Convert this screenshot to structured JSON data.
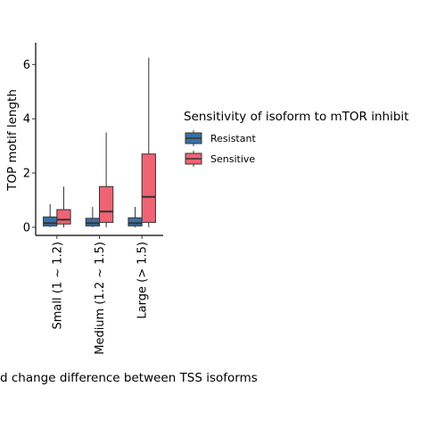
{
  "chart_data": {
    "type": "boxplot",
    "ylabel": "TOP motif length",
    "xlabel": "d change difference between TSS isoforms",
    "categories": [
      "Small (1 ~ 1.2)",
      "Medium (1.2 ~ 1.5)",
      "Large (> 1.5)"
    ],
    "ylim": [
      -0.3,
      6.8
    ],
    "yticks": [
      0,
      2,
      4,
      6
    ],
    "grid": false,
    "legend": {
      "title": "Sensitivity of isoform to mTOR inhibit",
      "placement": "right"
    },
    "series": [
      {
        "name": "Resistant",
        "color": "#3a6fa3",
        "boxes": [
          {
            "min": 0.0,
            "q1": 0.05,
            "median": 0.15,
            "q3": 0.38,
            "max": 0.85
          },
          {
            "min": 0.0,
            "q1": 0.05,
            "median": 0.15,
            "q3": 0.33,
            "max": 0.75
          },
          {
            "min": 0.0,
            "q1": 0.05,
            "median": 0.15,
            "q3": 0.35,
            "max": 0.75
          }
        ]
      },
      {
        "name": "Sensitive",
        "color": "#ee6474",
        "boxes": [
          {
            "min": 0.0,
            "q1": 0.12,
            "median": 0.28,
            "q3": 0.65,
            "max": 1.5
          },
          {
            "min": 0.0,
            "q1": 0.18,
            "median": 0.58,
            "q3": 1.5,
            "max": 3.5
          },
          {
            "min": 0.0,
            "q1": 0.18,
            "median": 1.12,
            "q3": 2.7,
            "max": 6.25
          }
        ]
      }
    ]
  }
}
